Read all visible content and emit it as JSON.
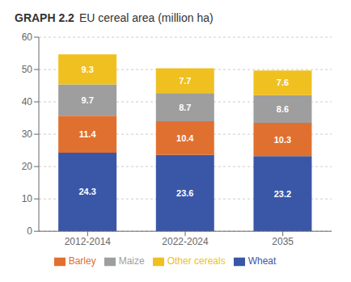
{
  "chart_data": {
    "type": "bar",
    "title": "GRAPH 2.2",
    "subtitle": "EU cereal area (million ha)",
    "categories": [
      "2012-2014",
      "2022-2024",
      "2035"
    ],
    "series": [
      {
        "name": "Wheat",
        "color": "#3a57a7",
        "values": [
          24.3,
          23.6,
          23.2
        ]
      },
      {
        "name": "Barley",
        "color": "#e07030",
        "values": [
          11.4,
          10.4,
          10.3
        ]
      },
      {
        "name": "Maize",
        "color": "#9e9e9e",
        "values": [
          9.7,
          8.7,
          8.6
        ]
      },
      {
        "name": "Other cereals",
        "color": "#f0c020",
        "values": [
          9.3,
          7.7,
          7.6
        ]
      }
    ],
    "stacked": true,
    "data_labels": true,
    "ylim": [
      0,
      60
    ],
    "yticks": [
      0,
      10,
      20,
      30,
      40,
      50,
      60
    ],
    "grid": true,
    "legend": "bottom"
  }
}
